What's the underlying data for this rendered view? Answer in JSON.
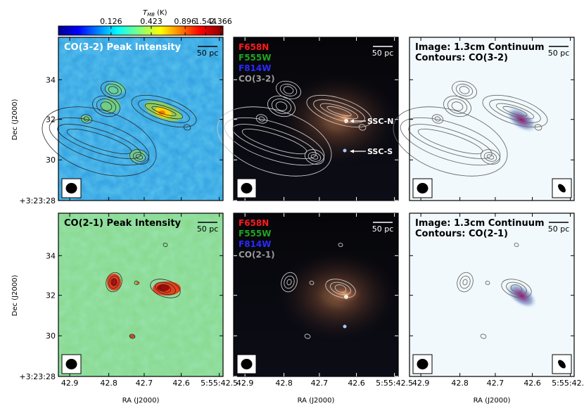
{
  "chart_data": {
    "type": "heatmap",
    "colorbar": {
      "label": "T_MB (K)",
      "label_main": "T",
      "label_sub": "MB",
      "label_unit": " (K)",
      "ticks": [
        "0.126",
        "0.423",
        "0.896",
        "1.544",
        "2.366"
      ],
      "colormap": "jet"
    },
    "axes": {
      "xlabel": "RA (J2000)",
      "ylabel": "Dec (J2000)",
      "xticks": [
        "42.9",
        "42.8",
        "42.7",
        "42.6",
        "5:55:42.5"
      ],
      "yticks": [
        "34",
        "32",
        "30",
        "+3:23:28"
      ]
    },
    "panels": [
      {
        "title": "CO(3-2) Peak Intensity",
        "scale_bar": "50 pc",
        "style": "colormap",
        "line": "CO(3-2)"
      },
      {
        "legend": [
          "F658N",
          "F555W",
          "F814W",
          "CO(3-2)"
        ],
        "legend_colors": [
          "#ff1a1a",
          "#1fa51f",
          "#2a2aff",
          "#9a9a9a"
        ],
        "scale_bar": "50 pc",
        "style": "optical",
        "labels": [
          "SSC-N",
          "SSC-S"
        ]
      },
      {
        "title_lines": [
          "Image: 1.3cm Continuum",
          "Contours: CO(3-2)"
        ],
        "scale_bar": "50 pc",
        "style": "continuum"
      },
      {
        "title": "CO(2-1) Peak Intensity",
        "scale_bar": "50 pc",
        "style": "colormap",
        "line": "CO(2-1)"
      },
      {
        "legend": [
          "F658N",
          "F555W",
          "F814W",
          "CO(2-1)"
        ],
        "legend_colors": [
          "#ff1a1a",
          "#1fa51f",
          "#2a2aff",
          "#9a9a9a"
        ],
        "scale_bar": "50 pc",
        "style": "optical"
      },
      {
        "title_lines": [
          "Image: 1.3cm Continuum",
          "Contours: CO(2-1)"
        ],
        "scale_bar": "50 pc",
        "style": "continuum"
      }
    ]
  }
}
